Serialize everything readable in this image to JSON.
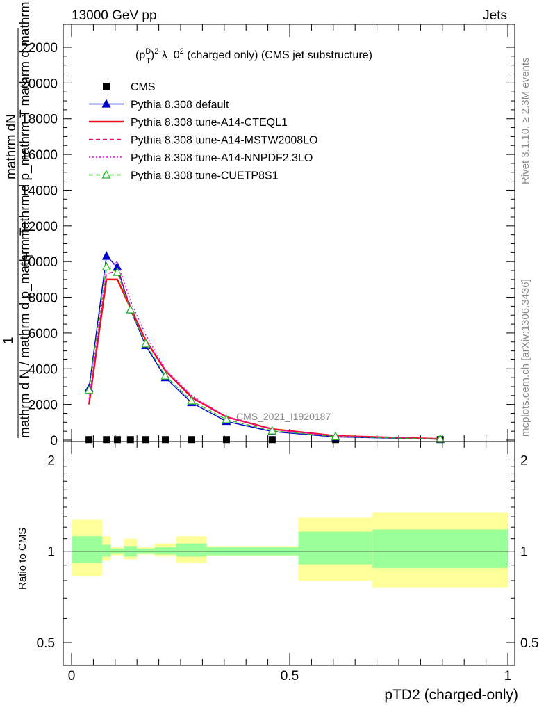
{
  "header": {
    "left": "13000 GeV pp",
    "right": "Jets"
  },
  "plot": {
    "title_main": "(p",
    "title_sup_D": "D",
    "title_sub_T": "T",
    "title_rest": ")",
    "title_sup2": "2",
    "title_lambda": " λ_0",
    "title_sup2b": "2",
    "title_tail": " (charged only) (CMS jet substructure)",
    "ylabel_numerator": "mathrm dN",
    "ylabel_numerator_overflow": "mathrm d p_mathrm T mathrm d mathrm lambda",
    "ylabel_one": "1",
    "ylabel_denominator": "mathrm d N / mathrm d p_mathrm T",
    "ylabel_denominator_T": "T",
    "watermark": "CMS_2021_I1920187",
    "side_text_rivet": "Rivet 3.1.10, ≥ 2.3M events",
    "side_text_mcplots": "mcplots.cern.ch [arXiv:1306.3436]"
  },
  "ratio": {
    "ylabel": "Ratio to CMS",
    "xlabel": "pTD2 (charged-only)"
  },
  "legend": [
    {
      "label": "CMS",
      "color": "#000000",
      "style": "marker-square"
    },
    {
      "label": "Pythia 8.308 default",
      "color": "#0000cc",
      "style": "solid-triangle"
    },
    {
      "label": "Pythia 8.308 tune-A14-CTEQL1",
      "color": "#ee1111",
      "style": "solid-thick"
    },
    {
      "label": "Pythia 8.308 tune-A14-MSTW2008LO",
      "color": "#ee0077",
      "style": "dashed"
    },
    {
      "label": "Pythia 8.308 tune-A14-NNPDF2.3LO",
      "color": "#ee00ee",
      "style": "dotted"
    },
    {
      "label": "Pythia 8.308 tune-CUETP8S1",
      "color": "#22bb22",
      "style": "dashed-open-triangle"
    }
  ],
  "chart_data": [
    {
      "type": "line",
      "title": "(p_T^D)^2 λ_0^2 (charged only) (CMS jet substructure)",
      "xlim": [
        0,
        1
      ],
      "ylim": [
        0,
        22000
      ],
      "yticks": [
        0,
        2000,
        4000,
        6000,
        8000,
        10000,
        12000,
        14000,
        16000,
        18000,
        20000,
        22000
      ],
      "ytick_labels": [
        "0",
        "2000",
        "4000",
        "6000",
        "8000",
        "10000",
        "12000",
        "14000",
        "16000",
        "18000",
        "20000",
        "22000"
      ],
      "grid": false,
      "legend_position": "top-left",
      "x": [
        0.04,
        0.08,
        0.105,
        0.135,
        0.17,
        0.215,
        0.275,
        0.355,
        0.46,
        0.605,
        0.845
      ],
      "series": [
        {
          "name": "CMS",
          "values": [
            30,
            30,
            30,
            30,
            30,
            30,
            30,
            30,
            30,
            30,
            30
          ]
        },
        {
          "name": "Pythia 8.308 default",
          "values": [
            2900,
            10300,
            9700,
            7300,
            5300,
            3500,
            2100,
            1050,
            480,
            180,
            50
          ]
        },
        {
          "name": "Pythia 8.308 tune-A14-CTEQL1",
          "values": [
            2000,
            9000,
            9000,
            7400,
            5600,
            3900,
            2400,
            1300,
            620,
            240,
            70
          ]
        },
        {
          "name": "Pythia 8.308 tune-A14-MSTW2008LO",
          "values": [
            2100,
            9300,
            9500,
            7500,
            5600,
            3900,
            2400,
            1300,
            600,
            230,
            65
          ]
        },
        {
          "name": "Pythia 8.308 tune-A14-NNPDF2.3LO",
          "values": [
            2300,
            9600,
            10000,
            7800,
            5900,
            4000,
            2500,
            1300,
            600,
            230,
            65
          ]
        },
        {
          "name": "Pythia 8.308 tune-CUETP8S1",
          "values": [
            2800,
            9700,
            9400,
            7300,
            5400,
            3600,
            2200,
            1150,
            520,
            200,
            60
          ]
        }
      ]
    },
    {
      "type": "area",
      "ylabel": "Ratio to CMS",
      "xlabel": "pTD2 (charged-only)",
      "xlim": [
        0,
        1
      ],
      "ylim": [
        0.42,
        2.3
      ],
      "yscale": "log",
      "yticks": [
        0.5,
        1,
        2
      ],
      "ytick_labels": [
        "0.5",
        "1",
        "2"
      ],
      "xticks": [
        0,
        0.5,
        1
      ],
      "xtick_labels": [
        "0",
        "0.5",
        "1"
      ],
      "bin_edges": [
        0,
        0.07,
        0.09,
        0.12,
        0.15,
        0.19,
        0.24,
        0.31,
        0.52,
        0.69,
        1.0
      ],
      "band_inner": [
        [
          0.915,
          1.12
        ],
        [
          0.96,
          1.05
        ],
        [
          0.98,
          1.02
        ],
        [
          0.96,
          1.04
        ],
        [
          0.98,
          1.02
        ],
        [
          0.975,
          1.03
        ],
        [
          0.96,
          1.06
        ],
        [
          0.97,
          1.03
        ],
        [
          0.905,
          1.16
        ],
        [
          0.88,
          1.18
        ]
      ],
      "band_outer": [
        [
          0.83,
          1.27
        ],
        [
          0.93,
          1.12
        ],
        [
          0.97,
          1.03
        ],
        [
          0.94,
          1.1
        ],
        [
          0.975,
          1.03
        ],
        [
          0.96,
          1.06
        ],
        [
          0.915,
          1.12
        ],
        [
          0.965,
          1.04
        ],
        [
          0.8,
          1.29
        ],
        [
          0.76,
          1.34
        ]
      ]
    }
  ]
}
